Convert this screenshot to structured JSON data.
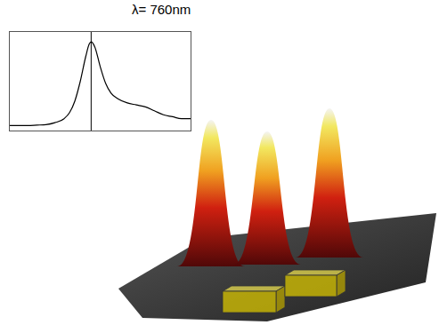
{
  "chart_data": {
    "type": "line",
    "title": "λ= 760nm",
    "x": [
      0,
      0.1,
      0.15,
      0.2,
      0.25,
      0.3,
      0.33,
      0.36,
      0.39,
      0.42,
      0.44,
      0.45,
      0.47,
      0.5,
      0.53,
      0.56,
      0.6,
      0.65,
      0.7,
      0.75,
      0.8,
      0.85,
      0.9,
      0.95,
      1
    ],
    "values": [
      0.05,
      0.05,
      0.055,
      0.06,
      0.08,
      0.12,
      0.18,
      0.3,
      0.5,
      0.75,
      0.88,
      0.9,
      0.85,
      0.65,
      0.48,
      0.38,
      0.32,
      0.28,
      0.26,
      0.24,
      0.2,
      0.16,
      0.14,
      0.12,
      0.12
    ],
    "color": "#000000",
    "xlim": [
      0,
      1
    ],
    "ylim": [
      0,
      1
    ],
    "vline": 0.45,
    "tick_labels": false,
    "grid": false
  }
}
